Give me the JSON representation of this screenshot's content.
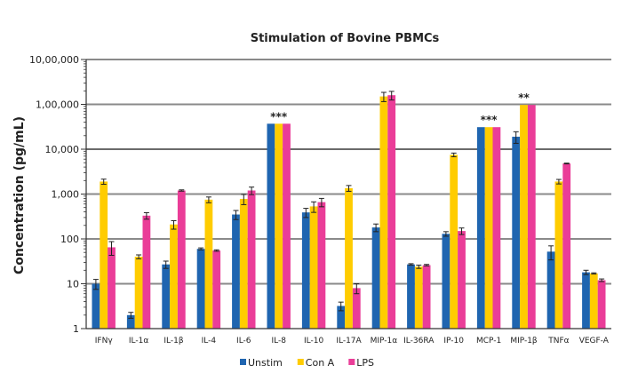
{
  "chart_data": {
    "type": "bar",
    "title": "Stimulation of Bovine PBMCs",
    "xlabel": "",
    "ylabel": "Concentration (pg/mL)",
    "yscale": "log",
    "ylim": [
      1,
      1000000
    ],
    "ytick_labels": [
      "1",
      "10",
      "100",
      "1,000",
      "10,000",
      "1,00,000",
      "10,00,000"
    ],
    "grid": "horizontal",
    "legend_position": "bottom",
    "categories": [
      "IFNγ",
      "IL-1α",
      "IL-1β",
      "IL-4",
      "IL-6",
      "IL-8",
      "IL-10",
      "IL-17A",
      "MIP-1α",
      "IL-36RA",
      "IP-10",
      "MCP-1",
      "MIP-1β",
      "TNFα",
      "VEGF-A"
    ],
    "series": [
      {
        "name": "Unstim",
        "color": "#1f65b0",
        "values": [
          10,
          2,
          27,
          60,
          350,
          37000,
          390,
          3.2,
          180,
          27,
          130,
          31000,
          19000,
          52,
          18
        ],
        "errors": [
          2.5,
          0.3,
          5,
          3,
          80,
          0,
          90,
          0.7,
          35,
          1,
          15,
          0,
          5500,
          18,
          2
        ]
      },
      {
        "name": "Con A",
        "color": "#ffcc00",
        "values": [
          1900,
          40,
          210,
          750,
          780,
          37000,
          530,
          1350,
          150000,
          24,
          7500,
          31000,
          97000,
          1900,
          17
        ],
        "errors": [
          250,
          4,
          45,
          110,
          200,
          0,
          140,
          200,
          35000,
          2,
          700,
          0,
          0,
          220,
          0.5
        ]
      },
      {
        "name": "LPS",
        "color": "#ea3d98",
        "values": [
          65,
          330,
          1200,
          55,
          1200,
          37000,
          660,
          8,
          160000,
          26,
          150,
          31000,
          97000,
          4800,
          12
        ],
        "errors": [
          22,
          55,
          40,
          2,
          230,
          0,
          140,
          2,
          35000,
          1,
          25,
          0,
          0,
          100,
          0.8
        ]
      }
    ],
    "annotations": [
      {
        "category": "IL-8",
        "text": "***"
      },
      {
        "category": "MCP-1",
        "text": "***"
      },
      {
        "category": "MIP-1β",
        "text": "**"
      }
    ]
  }
}
